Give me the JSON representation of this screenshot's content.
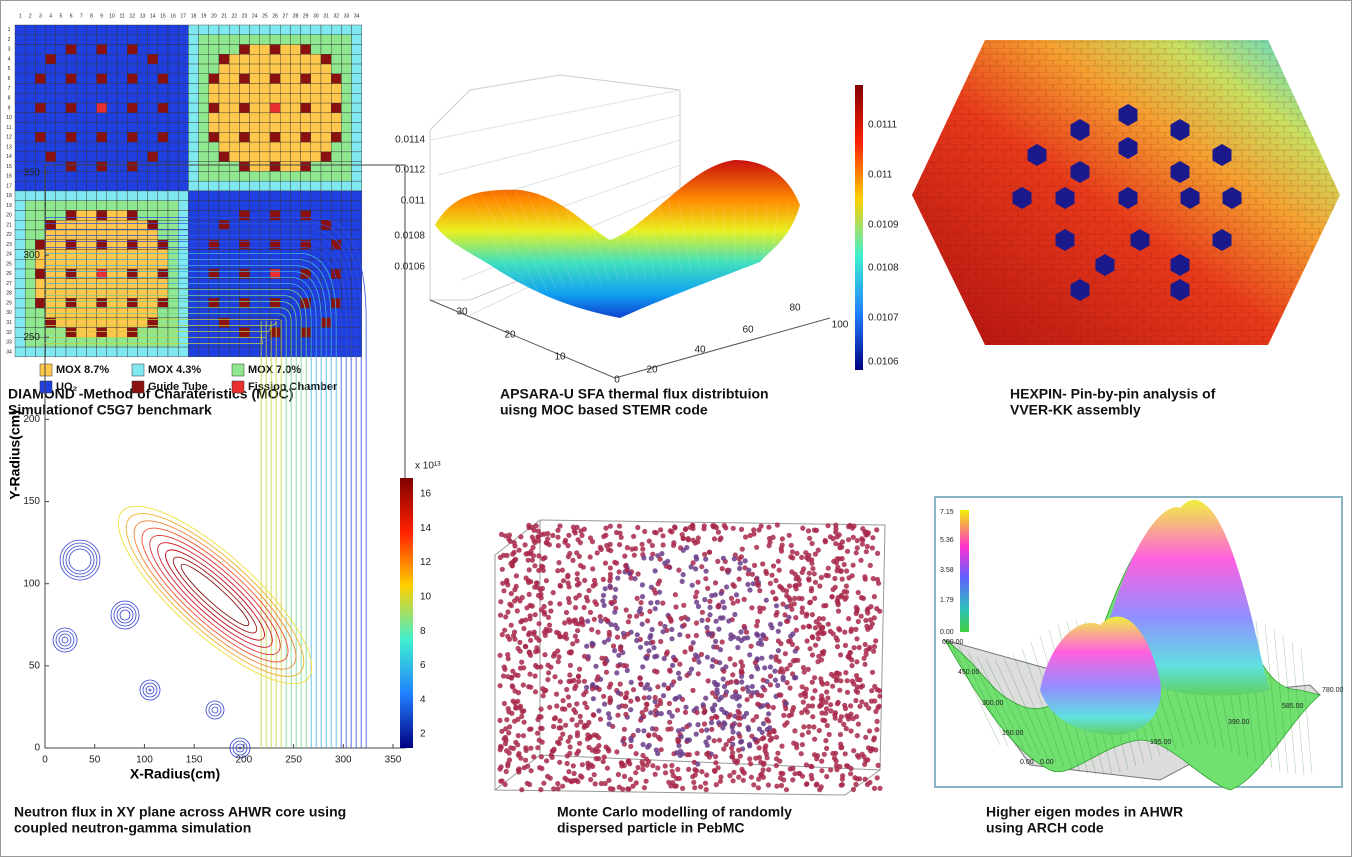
{
  "panels": [
    {
      "caption": [
        "DIAMOND -Method of Charateristics (MOC)",
        "Simulationof C5G7 benchmark"
      ],
      "grid_numbers": [
        1,
        2,
        3,
        4,
        5,
        6,
        7,
        8,
        9,
        10,
        11,
        12,
        13,
        14,
        15,
        16,
        17,
        18,
        19,
        20,
        21,
        22,
        23,
        24,
        25,
        26,
        27,
        28,
        29,
        30,
        31,
        32,
        33,
        34
      ],
      "legend": [
        "MOX 8.7%",
        "MOX 4.3%",
        "MOX 7.0%",
        "UO₂",
        "Guide Tube",
        "Fission Chamber"
      ]
    },
    {
      "caption": [
        "APSARA-U SFA thermal flux distribtuion",
        "uisng MOC based STEMR code"
      ],
      "z_ticks": [
        "0.0114",
        "0.0112",
        "0.011",
        "0.0108",
        "0.0106"
      ],
      "y_ticks": [
        "30",
        "20",
        "10",
        "0"
      ],
      "x_ticks": [
        "20",
        "40",
        "60",
        "80",
        "100"
      ],
      "colorbar_ticks": [
        "0.0111",
        "0.011",
        "0.0109",
        "0.0108",
        "0.0107",
        "0.0106"
      ]
    },
    {
      "caption": [
        "HEXPIN- Pin-by-pin analysis of",
        "VVER-KK assembly"
      ]
    },
    {
      "caption": [
        "Neutron flux in XY plane across AHWR core using",
        "coupled neutron-gamma simulation"
      ],
      "y_label": "Y-Radius(cm)",
      "x_label": "X-Radius(cm)",
      "y_ticks": [
        0,
        50,
        100,
        150,
        200,
        250,
        300,
        350
      ],
      "x_ticks": [
        0,
        50,
        100,
        150,
        200,
        250,
        300,
        350
      ],
      "colorbar_unit": "x 10¹³",
      "colorbar_ticks": [
        16,
        14,
        12,
        10,
        8,
        6,
        4,
        2
      ]
    },
    {
      "caption": [
        "Monte Carlo modelling of randomly",
        "dispersed particle in PebMC"
      ]
    },
    {
      "caption": [
        "Higher eigen modes in AHWR",
        "using ARCH code"
      ],
      "colorbar_ticks": [
        "7.15",
        "5.36",
        "3.58",
        "1.79",
        "0.00"
      ],
      "x_ticks": [
        "600.00",
        "450.00",
        "300.00",
        "150.00",
        "0.00"
      ],
      "y_ticks": [
        "0.00",
        "195.00",
        "390.00",
        "585.00",
        "780.00"
      ]
    }
  ]
}
